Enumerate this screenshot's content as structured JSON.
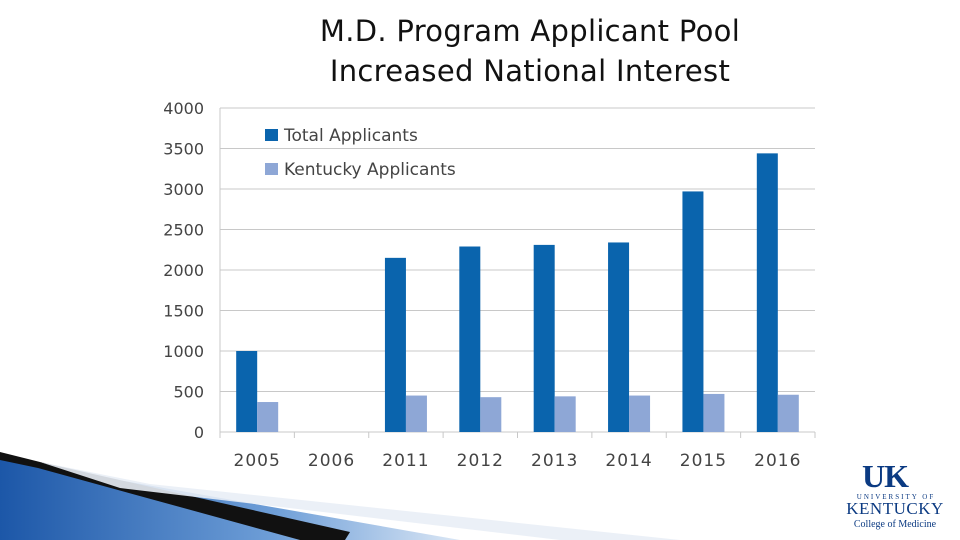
{
  "title": {
    "line1": "M.D. Program Applicant Pool",
    "line2": "Increased National Interest"
  },
  "logo": {
    "mark": "UK",
    "university": "UNIVERSITY OF",
    "state": "KENTUCKY",
    "college": "College of Medicine"
  },
  "colors": {
    "total": "#0a64ad",
    "kentucky": "#8ea7d6",
    "grid": "#c8c8c8",
    "tick_text": "#444444"
  },
  "chart_data": {
    "type": "bar",
    "categories": [
      "2005",
      "2006",
      "2011",
      "2012",
      "2013",
      "2014",
      "2015",
      "2016"
    ],
    "series": [
      {
        "name": "Total Applicants",
        "values": [
          1000,
          null,
          2150,
          2290,
          2310,
          2340,
          2970,
          3440
        ]
      },
      {
        "name": "Kentucky Applicants",
        "values": [
          370,
          null,
          450,
          430,
          440,
          450,
          470,
          460
        ]
      }
    ],
    "y_ticks": [
      0,
      500,
      1000,
      1500,
      2000,
      2500,
      3000,
      3500,
      4000
    ],
    "ylim": [
      0,
      4000
    ],
    "grid": true,
    "legend_position": "top-left"
  }
}
